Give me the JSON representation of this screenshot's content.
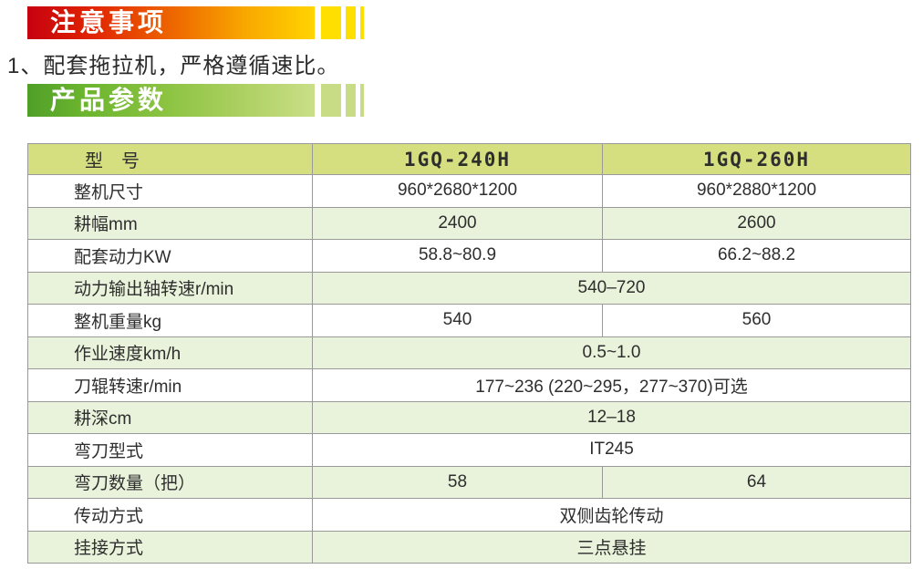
{
  "notice": {
    "title": "注意事项",
    "note": "1、配套拖拉机，严格遵循速比。"
  },
  "params": {
    "title": "产品参数"
  },
  "table": {
    "header": [
      "型　号",
      "1GQ-240H",
      "1GQ-260H"
    ],
    "rows": [
      {
        "label": "整机尺寸",
        "values": [
          "960*2680*1200",
          "960*2880*1200"
        ]
      },
      {
        "label": "耕幅mm",
        "values": [
          "2400",
          "2600"
        ]
      },
      {
        "label": "配套动力KW",
        "values": [
          "58.8~80.9",
          "66.2~88.2"
        ]
      },
      {
        "label": "动力输出轴转速r/min",
        "span": "540–720"
      },
      {
        "label": "整机重量kg",
        "values": [
          "540",
          "560"
        ]
      },
      {
        "label": "作业速度km/h",
        "span": "0.5~1.0"
      },
      {
        "label": "刀辊转速r/min",
        "span": "177~236 (220~295，277~370)可选"
      },
      {
        "label": "耕深cm",
        "span": "12–18"
      },
      {
        "label": "弯刀型式",
        "span": "IT245"
      },
      {
        "label": "弯刀数量（把）",
        "values": [
          "58",
          "64"
        ]
      },
      {
        "label": "传动方式",
        "span": "双侧齿轮传动"
      },
      {
        "label": "挂接方式",
        "span": "三点悬挂"
      }
    ]
  },
  "colors": {
    "notice_banner_start": "#c60110",
    "notice_banner_end": "#ffd400",
    "notice_stripe": "#ffdf00",
    "params_banner_start": "#4f9f28",
    "params_banner_end": "#cadf88",
    "params_stripe": "#c8db85",
    "table_header_bg": "#d5df80",
    "table_row_alt_bg": "#e9f2da",
    "table_border": "#999999",
    "text": "#2e2e2e"
  }
}
